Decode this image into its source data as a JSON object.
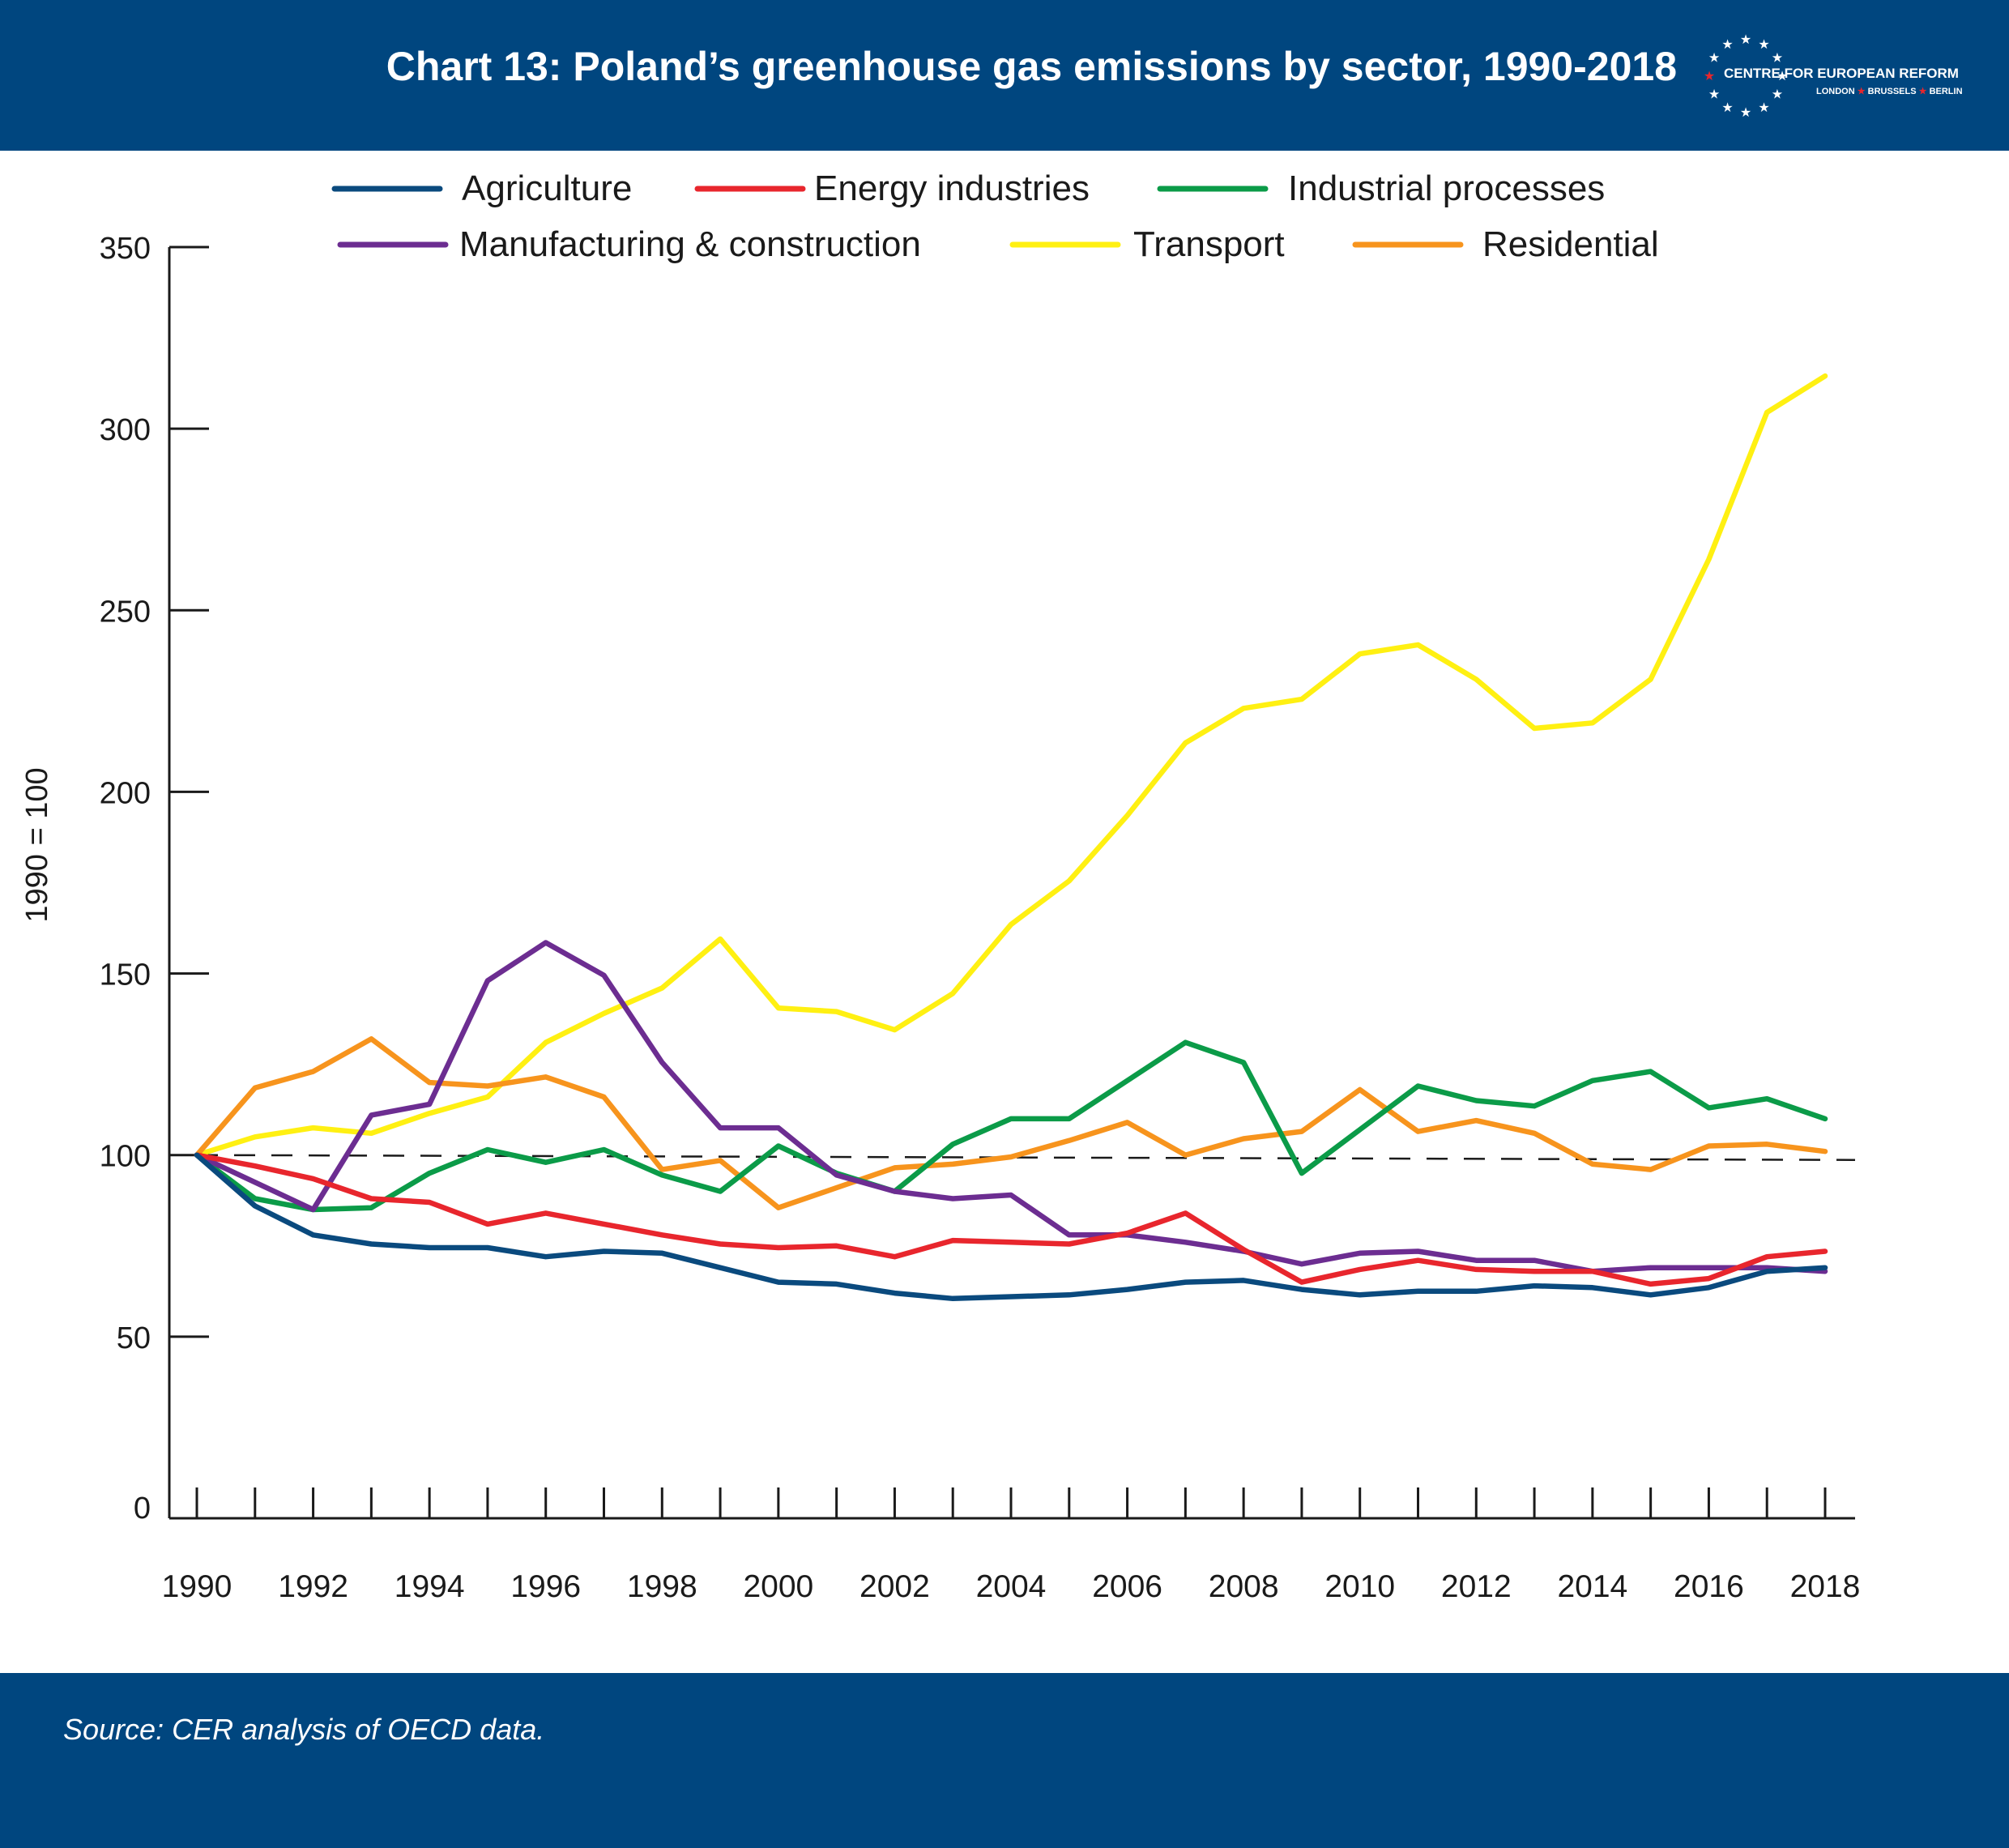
{
  "header": {
    "title": "Chart 13: Poland’s greenhouse gas emissions by sector, 1990-2018",
    "logo_name": "CENTRE FOR EUROPEAN REFORM",
    "logo_cities": [
      "LONDON",
      "BRUSSELS",
      "BERLIN"
    ],
    "logo_icon": "star-ring-icon",
    "brand_color": "#00467f",
    "accent_color": "#e8262d"
  },
  "footer": {
    "source": "Source: CER analysis of OECD data."
  },
  "chart_data": {
    "type": "line",
    "ylabel": "1990 = 100",
    "ylim": [
      0,
      350
    ],
    "yticks": [
      0,
      50,
      100,
      150,
      200,
      250,
      300,
      350
    ],
    "x": [
      1990,
      1991,
      1992,
      1993,
      1994,
      1995,
      1996,
      1997,
      1998,
      1999,
      2000,
      2001,
      2002,
      2003,
      2004,
      2005,
      2006,
      2007,
      2008,
      2009,
      2010,
      2011,
      2012,
      2013,
      2014,
      2015,
      2016,
      2017,
      2018
    ],
    "xtick_labels": [
      1990,
      1992,
      1994,
      1996,
      1998,
      2000,
      2002,
      2004,
      2006,
      2008,
      2010,
      2012,
      2014,
      2016,
      2018
    ],
    "reference_line": 100,
    "legend_position": "top",
    "grid": false,
    "series": [
      {
        "name": "Agriculture",
        "color": "#0a4a7e",
        "values": [
          100,
          86,
          78,
          75.5,
          74.5,
          74.5,
          72,
          73.5,
          73,
          69,
          65,
          64.5,
          62,
          60.5,
          61,
          61.5,
          63,
          65,
          65.5,
          63,
          61.5,
          62.5,
          62.5,
          64,
          63.5,
          61.5,
          63.5,
          68,
          69
        ]
      },
      {
        "name": "Energy industries",
        "color": "#e8262d",
        "values": [
          100,
          97,
          93.5,
          88,
          87,
          81,
          84,
          81,
          78,
          75.5,
          74.5,
          75,
          72,
          76.5,
          76,
          75.5,
          78.5,
          84,
          74,
          65,
          68.5,
          71,
          68.5,
          68,
          68,
          64.5,
          66,
          72,
          73.5
        ]
      },
      {
        "name": "Industrial processes",
        "color": "#0b9b48",
        "values": [
          100,
          88,
          85,
          85.5,
          95,
          101.5,
          98,
          101.5,
          94.5,
          90,
          102.5,
          95,
          90,
          103,
          110,
          110,
          120.5,
          131,
          125.5,
          95,
          107,
          119,
          115,
          113.5,
          120.5,
          123,
          113,
          115.5,
          110
        ]
      },
      {
        "name": "Manufacturing & construction",
        "color": "#6c2d91",
        "values": [
          100,
          92.5,
          85,
          111,
          114,
          148,
          158.5,
          149.5,
          125.5,
          107.5,
          107.5,
          94.5,
          90,
          88,
          89,
          78,
          78,
          76,
          73.5,
          70,
          73,
          73.5,
          71,
          71,
          68,
          69,
          69,
          69,
          68
        ]
      },
      {
        "name": "Transport",
        "color": "#fff012",
        "values": [
          100,
          105,
          107.5,
          106,
          111.5,
          116,
          131,
          139,
          146,
          159.5,
          140.5,
          139.5,
          134.5,
          144.5,
          163.5,
          175.5,
          193.5,
          213.5,
          223,
          225.5,
          238,
          240.5,
          231,
          217.5,
          219,
          231,
          264,
          304.5,
          314.5
        ]
      },
      {
        "name": "Residential",
        "color": "#f7941d",
        "values": [
          100,
          118.5,
          123,
          132,
          120,
          119,
          121.5,
          116,
          96,
          98.5,
          85.5,
          91,
          96.5,
          97.5,
          99.5,
          104,
          109,
          100,
          104.5,
          106.5,
          118,
          106.5,
          109.5,
          106,
          97.5,
          96,
          102.5,
          103,
          101
        ]
      }
    ]
  }
}
